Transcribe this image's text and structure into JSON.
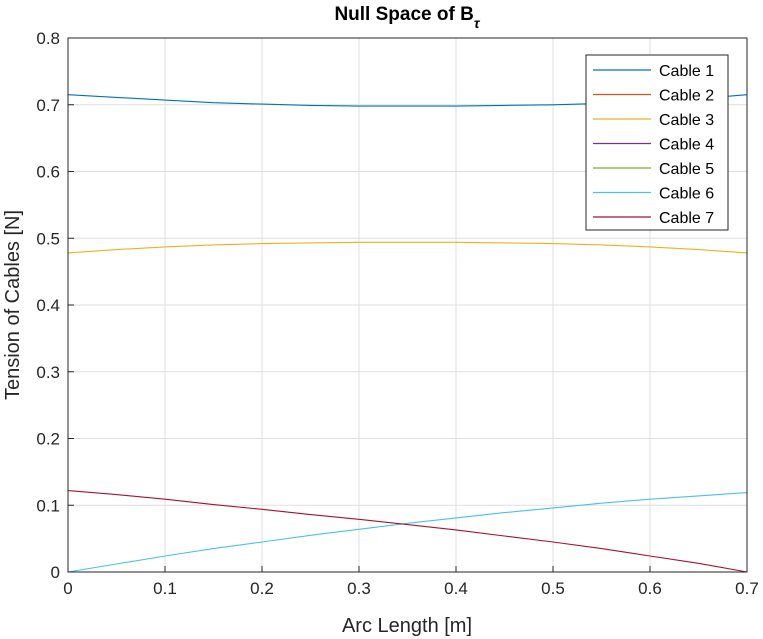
{
  "chart_data": {
    "type": "line",
    "title": "Null Space of B",
    "title_subscript": "τ",
    "xlabel": "Arc Length [m]",
    "ylabel": "Tension of Cables [N]",
    "xlim": [
      0,
      0.7
    ],
    "ylim": [
      0,
      0.8
    ],
    "x_ticks": [
      "0",
      "0.1",
      "0.2",
      "0.3",
      "0.4",
      "0.5",
      "0.6",
      "0.7"
    ],
    "y_ticks": [
      "0",
      "0.1",
      "0.2",
      "0.3",
      "0.4",
      "0.5",
      "0.6",
      "0.7",
      "0.8"
    ],
    "grid": true,
    "legend_position": "top-right",
    "x": [
      0,
      0.05,
      0.1,
      0.15,
      0.2,
      0.25,
      0.3,
      0.35,
      0.4,
      0.45,
      0.5,
      0.55,
      0.6,
      0.65,
      0.7
    ],
    "series": [
      {
        "name": "Cable 1",
        "color": "#0072BD",
        "values": [
          0.715,
          0.711,
          0.707,
          0.703,
          0.701,
          0.699,
          0.698,
          0.698,
          0.698,
          0.699,
          0.7,
          0.702,
          0.705,
          0.709,
          0.715
        ]
      },
      {
        "name": "Cable 2",
        "color": "#D95319",
        "values": [
          0,
          0,
          0,
          0,
          0,
          0,
          0,
          0,
          0,
          0,
          0,
          0,
          0,
          0,
          0
        ]
      },
      {
        "name": "Cable 3",
        "color": "#EDB120",
        "values": [
          0.478,
          0.483,
          0.487,
          0.49,
          0.492,
          0.493,
          0.494,
          0.494,
          0.494,
          0.493,
          0.492,
          0.49,
          0.487,
          0.483,
          0.478
        ]
      },
      {
        "name": "Cable 4",
        "color": "#7E2F8E",
        "values": [
          0,
          0,
          0,
          0,
          0,
          0,
          0,
          0,
          0,
          0,
          0,
          0,
          0,
          0,
          0
        ]
      },
      {
        "name": "Cable 5",
        "color": "#77AC30",
        "values": [
          0,
          0,
          0,
          0,
          0,
          0,
          0,
          0,
          0,
          0,
          0,
          0,
          0,
          0,
          0
        ]
      },
      {
        "name": "Cable 6",
        "color": "#4DBEEE",
        "values": [
          0,
          0.012,
          0.024,
          0.035,
          0.045,
          0.055,
          0.064,
          0.073,
          0.081,
          0.089,
          0.096,
          0.103,
          0.109,
          0.114,
          0.119
        ]
      },
      {
        "name": "Cable 7",
        "color": "#A2142F",
        "values": [
          0.122,
          0.116,
          0.109,
          0.101,
          0.094,
          0.086,
          0.079,
          0.071,
          0.063,
          0.054,
          0.045,
          0.035,
          0.024,
          0.013,
          0
        ]
      }
    ]
  }
}
